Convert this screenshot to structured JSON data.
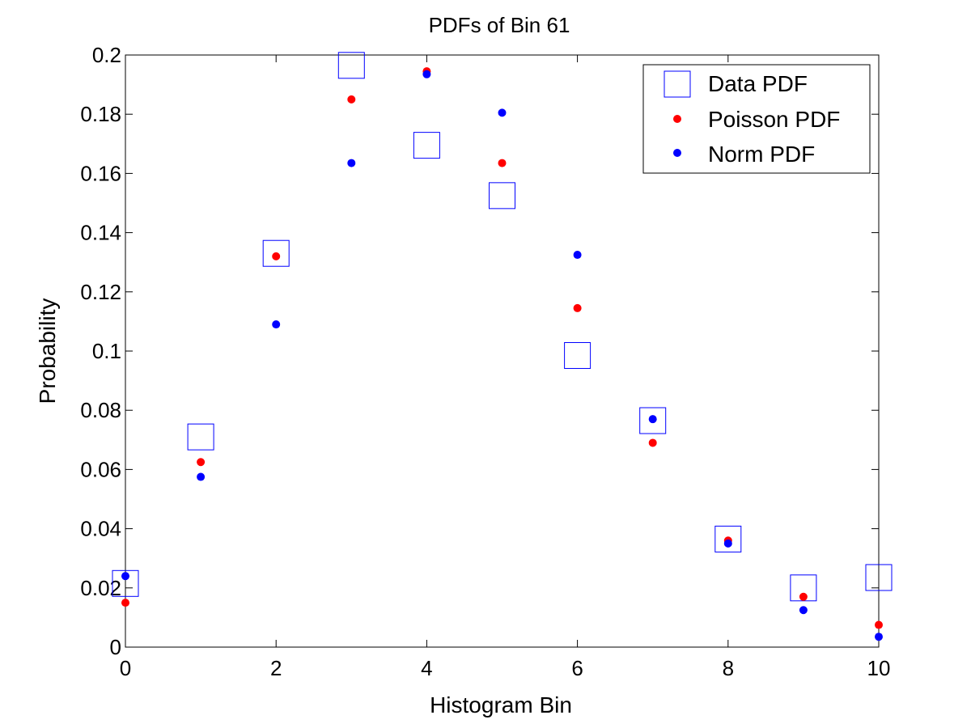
{
  "chart_data": {
    "type": "scatter",
    "title": "PDFs of Bin 61",
    "xlabel": "Histogram Bin",
    "ylabel": "Probability",
    "xlim": [
      0,
      10
    ],
    "ylim": [
      0,
      0.2
    ],
    "xticks": [
      0,
      2,
      4,
      6,
      8,
      10
    ],
    "yticks": [
      0,
      0.02,
      0.04,
      0.06,
      0.08,
      0.1,
      0.12,
      0.14,
      0.16,
      0.18,
      0.2
    ],
    "xtick_labels": [
      "0",
      "2",
      "4",
      "6",
      "8",
      "10"
    ],
    "ytick_labels": [
      "0",
      "0.02",
      "0.04",
      "0.06",
      "0.08",
      "0.1",
      "0.12",
      "0.14",
      "0.16",
      "0.18",
      "0.2"
    ],
    "grid": false,
    "legend_position": "top-right",
    "x": [
      0,
      1,
      2,
      3,
      4,
      5,
      6,
      7,
      8,
      9,
      10
    ],
    "series": [
      {
        "name": "Data PDF",
        "marker": "square-open",
        "color": "#0000ff",
        "values": [
          0.0215,
          0.071,
          0.133,
          0.1965,
          0.1695,
          0.1525,
          0.0985,
          0.0765,
          0.0365,
          0.02,
          0.0235
        ]
      },
      {
        "name": "Poisson PDF",
        "marker": "dot",
        "color": "#ff0000",
        "values": [
          0.015,
          0.0625,
          0.132,
          0.185,
          0.1945,
          0.1635,
          0.1145,
          0.069,
          0.036,
          0.017,
          0.0075
        ]
      },
      {
        "name": "Norm PDF",
        "marker": "dot",
        "color": "#0000ff",
        "values": [
          0.024,
          0.0575,
          0.109,
          0.1635,
          0.1935,
          0.1805,
          0.1325,
          0.077,
          0.035,
          0.0125,
          0.0035
        ]
      }
    ]
  }
}
